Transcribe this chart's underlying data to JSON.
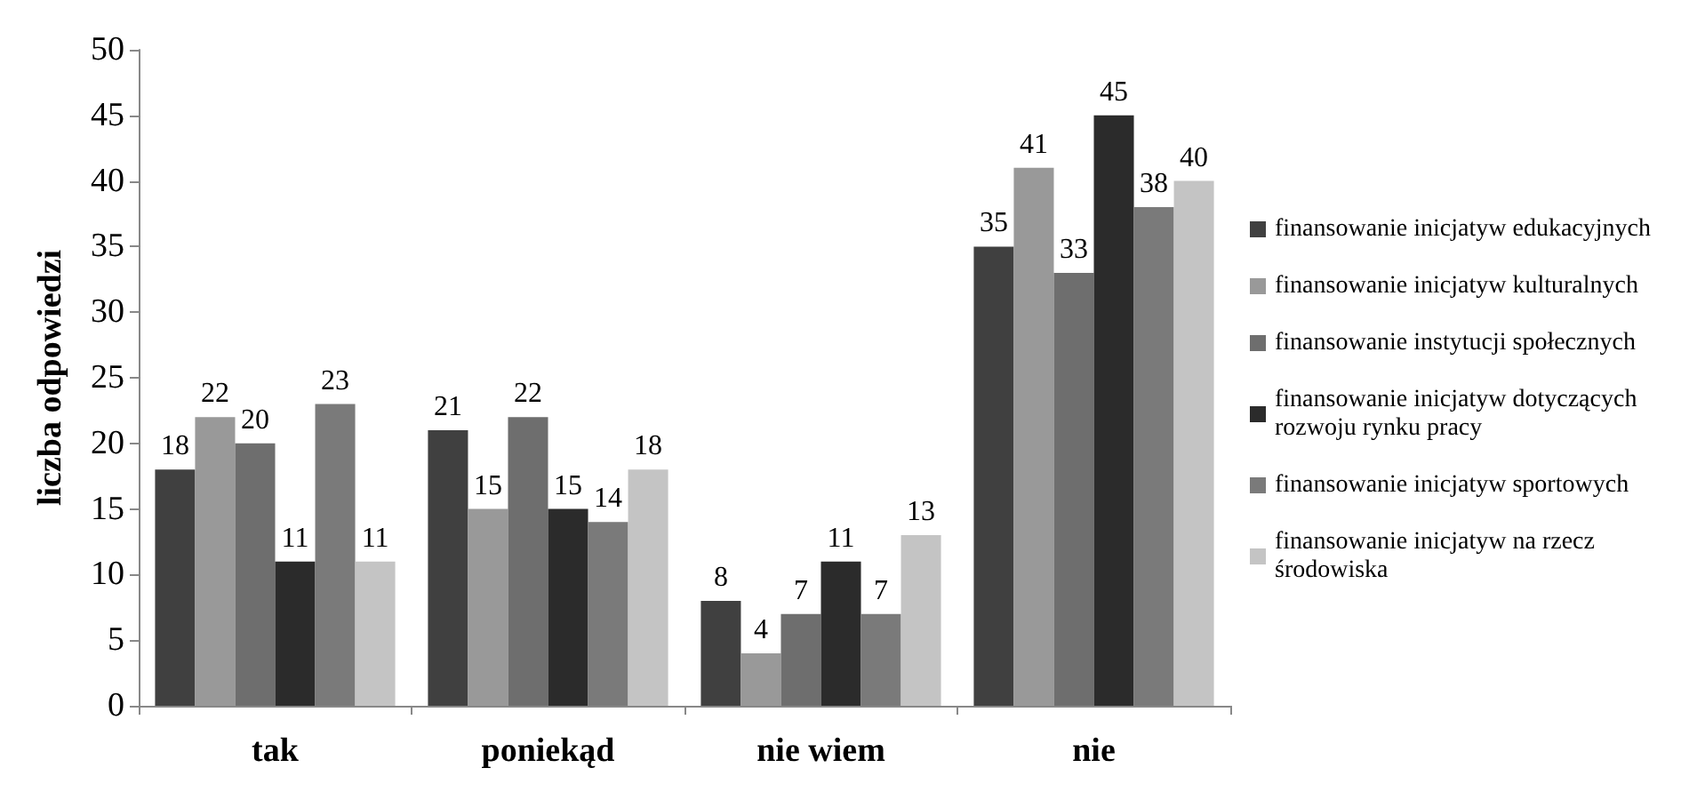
{
  "chart_data": {
    "type": "bar",
    "ylabel": "liczba odpowiedzi",
    "categories": [
      "tak",
      "poniekąd",
      "nie wiem",
      "nie"
    ],
    "series": [
      {
        "name": "finansowanie inicjatyw edukacyjnych",
        "color": "#404040",
        "values": [
          18,
          21,
          8,
          35
        ]
      },
      {
        "name": "finansowanie inicjatyw kulturalnych",
        "color": "#999999",
        "values": [
          22,
          15,
          4,
          41
        ]
      },
      {
        "name": "finansowanie instytucji społecznych",
        "color": "#6e6e6e",
        "values": [
          20,
          22,
          7,
          33
        ]
      },
      {
        "name": "finansowanie inicjatyw dotyczących rozwoju rynku pracy",
        "color": "#2b2b2b",
        "values": [
          11,
          15,
          11,
          45
        ]
      },
      {
        "name": "finansowanie inicjatyw sportowych",
        "color": "#7a7a7a",
        "values": [
          23,
          14,
          7,
          38
        ]
      },
      {
        "name": "finansowanie inicjatyw na rzecz środowiska",
        "color": "#c4c4c4",
        "values": [
          11,
          18,
          13,
          40
        ]
      }
    ],
    "ylim": [
      0,
      50
    ],
    "yticks": [
      0,
      5,
      10,
      15,
      20,
      25,
      30,
      35,
      40,
      45,
      50
    ],
    "grid": false,
    "legend": "right",
    "data_labels": true
  }
}
